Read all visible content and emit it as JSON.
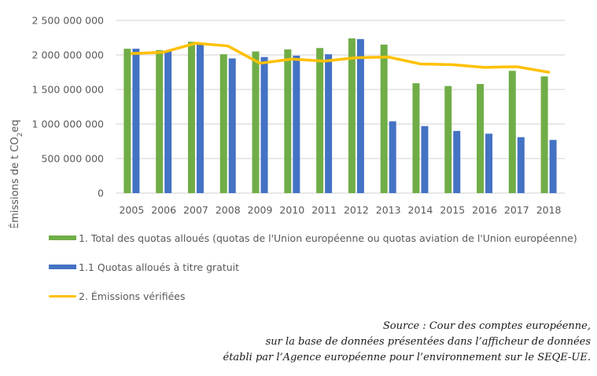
{
  "chart_data": {
    "type": "bar",
    "title": "",
    "xlabel": "",
    "ylabel": "Émissions de t CO2eq",
    "ylabel_parts": {
      "main": "Émissions de t CO",
      "sub": "2",
      "tail": "eq"
    },
    "ylim": [
      0,
      2500000000
    ],
    "yticks": [
      0,
      500000000,
      1000000000,
      1500000000,
      2000000000,
      2500000000
    ],
    "ytick_labels": [
      "0",
      "500 000 000",
      "1 000 000 000",
      "1 500 000 000",
      "2 000 000 000",
      "2 500 000 000"
    ],
    "grid": true,
    "legend_position": "bottom",
    "categories": [
      "2005",
      "2006",
      "2007",
      "2008",
      "2009",
      "2010",
      "2011",
      "2012",
      "2013",
      "2014",
      "2015",
      "2016",
      "2017",
      "2018"
    ],
    "series": [
      {
        "name": "1. Total des quotas alloués (quotas de l'Union européenne ou quotas aviation de l'Union européenne)",
        "type": "bar",
        "color": "#70ad47",
        "values": [
          2090000000,
          2070000000,
          2190000000,
          2010000000,
          2050000000,
          2080000000,
          2100000000,
          2240000000,
          2150000000,
          1590000000,
          1550000000,
          1580000000,
          1770000000,
          1690000000
        ]
      },
      {
        "name": "1.1 Quotas alloués à titre gratuit",
        "type": "bar",
        "color": "#4472c4",
        "values": [
          2090000000,
          2060000000,
          2160000000,
          1950000000,
          1970000000,
          1990000000,
          2010000000,
          2230000000,
          1040000000,
          970000000,
          900000000,
          860000000,
          810000000,
          770000000
        ]
      },
      {
        "name": "2. Émissions vérifiées",
        "type": "line",
        "color": "#ffc000",
        "values": [
          2020000000,
          2040000000,
          2170000000,
          2130000000,
          1880000000,
          1940000000,
          1910000000,
          1960000000,
          1970000000,
          1870000000,
          1860000000,
          1820000000,
          1830000000,
          1750000000
        ]
      }
    ]
  },
  "source": {
    "lines": [
      "Source : Cour des comptes européenne,",
      "sur  la base de données présentées dans l’afficheur de données",
      "établi par l’Agence européenne pour l’environnement sur  le SEQE-UE."
    ]
  }
}
